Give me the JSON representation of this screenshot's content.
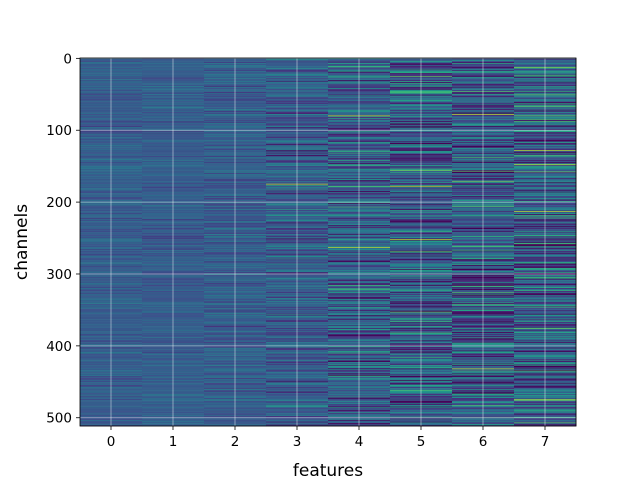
{
  "chart_data": {
    "type": "heatmap",
    "xlabel": "features",
    "ylabel": "channels",
    "x_categories": [
      "0",
      "1",
      "2",
      "3",
      "4",
      "5",
      "6",
      "7"
    ],
    "y_ticks": [
      "0",
      "100",
      "200",
      "300",
      "400",
      "500"
    ],
    "n_rows": 512,
    "ylim": [
      0,
      512
    ],
    "grid": true,
    "colormap": "viridis",
    "column_spread": [
      0.05,
      0.05,
      0.07,
      0.11,
      0.16,
      0.19,
      0.2,
      0.21
    ],
    "bright_streaks": [
      {
        "feature": 4,
        "channel": 80
      },
      {
        "feature": 6,
        "channel": 78
      },
      {
        "feature": 3,
        "channel": 175
      },
      {
        "feature": 5,
        "channel": 178
      },
      {
        "feature": 7,
        "channel": 148
      },
      {
        "feature": 4,
        "channel": 263
      },
      {
        "feature": 5,
        "channel": 252
      },
      {
        "feature": 7,
        "channel": 475
      },
      {
        "feature": 6,
        "channel": 432
      }
    ]
  }
}
